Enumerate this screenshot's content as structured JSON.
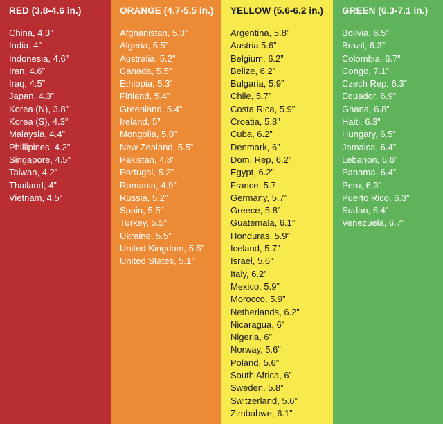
{
  "columns": [
    {
      "key": "red",
      "color": "#b82e32",
      "header": "RED (3.8-4.6 in.)",
      "items": [
        "China, 4.3”",
        "India, 4”",
        "Indonesia, 4.6”",
        "Iran, 4.6”",
        "Iraq, 4.5”",
        "Japan, 4.3”",
        "Korea (N), 3.8”",
        "Korea (S), 4.3”",
        "Malaysia, 4.4”",
        "Phillipines, 4.2”",
        "Singapore, 4.5”",
        "Taiwan, 4.2”",
        "Thailand, 4”",
        "Vietnam, 4.5”"
      ]
    },
    {
      "key": "orange",
      "color": "#ed8a36",
      "header": "ORANGE (4.7-5.5 in.)",
      "items": [
        "Afghanistan, 5.3”",
        "Algeria, 5.5”",
        "Australia, 5.2”",
        "Canada, 5.5”",
        "Ethiopia, 5.3”",
        "Finland, 5.4”",
        "Greenland, 5.4”",
        "Ireland, 5”",
        "Mongolia, 5.0”",
        "New Zealand, 5.5”",
        "Pakistan, 4.8”",
        "Portugal, 5.2”",
        "Romania, 4.9”",
        "Russia, 5.2”",
        "Spain, 5.5”",
        "Turkey, 5.5”",
        "Ukraine, 5.5”",
        "United Kingdom, 5.5”",
        "United States, 5.1”"
      ]
    },
    {
      "key": "yellow",
      "color": "#f8ea4d",
      "header": "YELLOW (5.6-6.2 in.)",
      "items": [
        "Argentina, 5.8”",
        "Austria 5.6”",
        "Belgium, 6.2”",
        "Belize, 6.2”",
        "Bulgaria, 5.9”",
        "Chile, 5.7”",
        "Costa Rica, 5.9”",
        "Croatia, 5.8”",
        "Cuba, 6.2”",
        "Denmark, 6”",
        "Dom. Rep, 6.2”",
        "Egypt, 6.2”",
        "France, 5.7",
        "Germany, 5.7”",
        "Greece, 5.8”",
        "Guatemala, 6.1”",
        "Honduras, 5.9”",
        "Iceland, 5.7”",
        "Israel, 5.6”",
        "Italy, 6.2”",
        "Mexico, 5.9”",
        "Morocco, 5.9”",
        "Netherlands, 6.2”",
        "Nicaragua, 6”",
        "Nigeria, 6”",
        "Norway, 5.6”",
        "Poland, 5.6”",
        "South Africa, 6”",
        "Sweden, 5.8”",
        "Switzerland, 5.6”",
        "Zimbabwe, 6.1”"
      ]
    },
    {
      "key": "green",
      "color": "#5fb35a",
      "header": "GREEN (6.3-7.1 in.)",
      "items": [
        "Bolivia, 6.5”",
        "Brazil, 6.3”",
        "Colombia, 6.7”",
        "Congo, 7.1”",
        "Czech Rep, 6.3”",
        "Equador, 6.9”",
        "Ghana, 6.8”",
        "Haiti, 6.3”",
        "Hungary, 6.5”",
        "Jamaica, 6.4”",
        "Lebanon, 6.6”",
        "Panama, 6.4”",
        "Peru, 6.3”",
        "Puerto Rico, 6.3”",
        "Sudan, 6.4”",
        "Venezuela, 6.7”"
      ]
    }
  ]
}
